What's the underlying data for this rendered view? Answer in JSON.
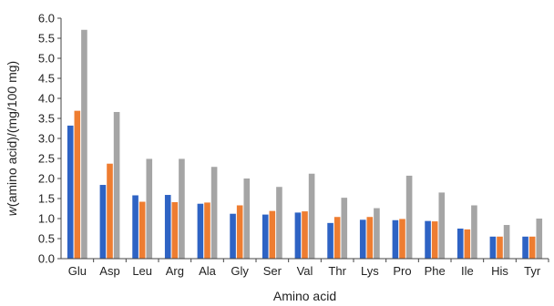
{
  "chart_data": {
    "type": "bar",
    "title": "",
    "xlabel": "Amino acid",
    "ylabel": "w(amino acid)/(mg/100 mg)",
    "ylim": [
      0,
      6.0
    ],
    "ytick_step": 0.5,
    "yticks": [
      "0.0",
      "0.5",
      "1.0",
      "1.5",
      "2.0",
      "2.5",
      "3.0",
      "3.5",
      "4.0",
      "4.5",
      "5.0",
      "5.5",
      "6.0"
    ],
    "grid": false,
    "legend": "none",
    "categories": [
      "Glu",
      "Asp",
      "Leu",
      "Arg",
      "Ala",
      "Gly",
      "Ser",
      "Val",
      "Thr",
      "Lys",
      "Pro",
      "Phe",
      "Ile",
      "His",
      "Tyr"
    ],
    "series": [
      {
        "color": "#2e63c4",
        "values": [
          3.32,
          1.84,
          1.58,
          1.59,
          1.37,
          1.12,
          1.1,
          1.15,
          0.89,
          0.97,
          0.96,
          0.94,
          0.75,
          0.55,
          0.55
        ]
      },
      {
        "color": "#ee7d31",
        "values": [
          3.69,
          2.37,
          1.42,
          1.41,
          1.4,
          1.33,
          1.19,
          1.18,
          1.04,
          1.04,
          0.99,
          0.93,
          0.73,
          0.55,
          0.55
        ]
      },
      {
        "color": "#a5a5a5",
        "values": [
          5.71,
          3.66,
          2.49,
          2.49,
          2.29,
          2.0,
          1.79,
          2.12,
          1.52,
          1.26,
          2.07,
          1.65,
          1.33,
          0.84,
          1.0
        ]
      }
    ]
  }
}
